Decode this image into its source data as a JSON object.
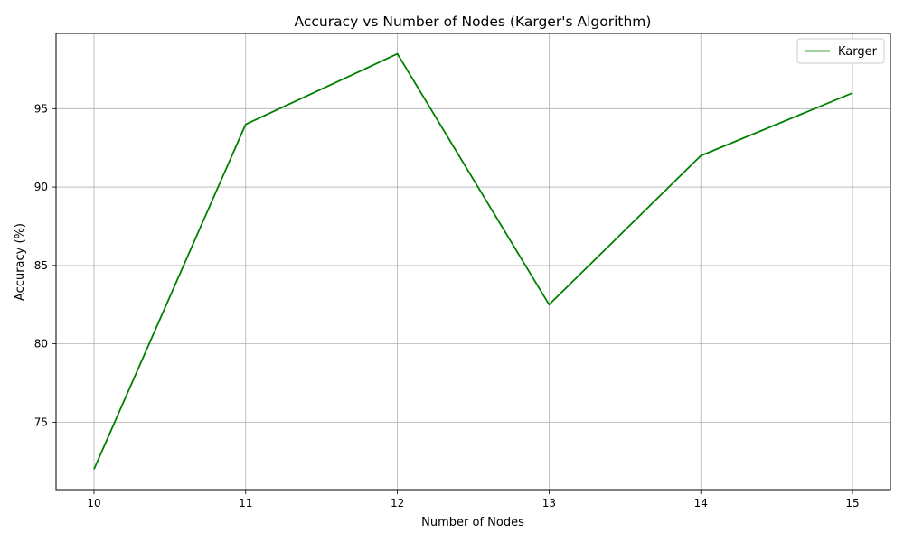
{
  "chart_data": {
    "type": "line",
    "title": "Accuracy vs Number of Nodes (Karger's Algorithm)",
    "xlabel": "Number of Nodes",
    "ylabel": "Accuracy (%)",
    "x": [
      10,
      11,
      12,
      13,
      14,
      15
    ],
    "series": [
      {
        "name": "Karger",
        "values": [
          72,
          94,
          98.5,
          82.5,
          92,
          96
        ],
        "color": "#008000"
      }
    ],
    "xlim": [
      9.75,
      15.25
    ],
    "ylim": [
      70.7,
      99.8
    ],
    "xticks": [
      "10",
      "11",
      "12",
      "13",
      "14",
      "15"
    ],
    "yticks": [
      "75",
      "80",
      "85",
      "90",
      "95"
    ],
    "grid": true,
    "legend_position": "top-right",
    "colors": {
      "grid": "#b0b0b0",
      "axis": "#000000",
      "background": "#ffffff"
    }
  }
}
